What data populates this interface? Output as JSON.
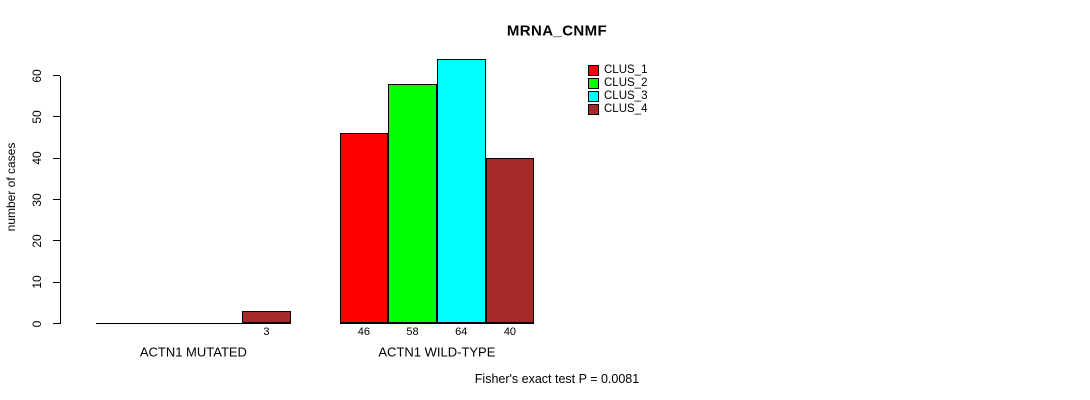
{
  "chart_data": {
    "type": "bar",
    "title": "MRNA_CNMF",
    "ylabel": "number of cases",
    "xlabel": "",
    "ylim": [
      0,
      60
    ],
    "yticks": [
      0,
      10,
      20,
      30,
      40,
      50,
      60
    ],
    "grid": false,
    "legend_position": "top-right",
    "categories": [
      "ACTN1 MUTATED",
      "ACTN1 WILD-TYPE"
    ],
    "series": [
      {
        "name": "CLUS_1",
        "color": "#ff0000",
        "values": [
          0,
          46
        ]
      },
      {
        "name": "CLUS_2",
        "color": "#00ff00",
        "values": [
          0,
          58
        ]
      },
      {
        "name": "CLUS_3",
        "color": "#00ffff",
        "values": [
          0,
          64
        ]
      },
      {
        "name": "CLUS_4",
        "color": "#a52a2a",
        "values": [
          3,
          40
        ]
      }
    ],
    "bar_value_labels_shown": [
      "3",
      "46",
      "58",
      "64",
      "40"
    ],
    "footnote": "Fisher's exact test P = 0.0081"
  }
}
